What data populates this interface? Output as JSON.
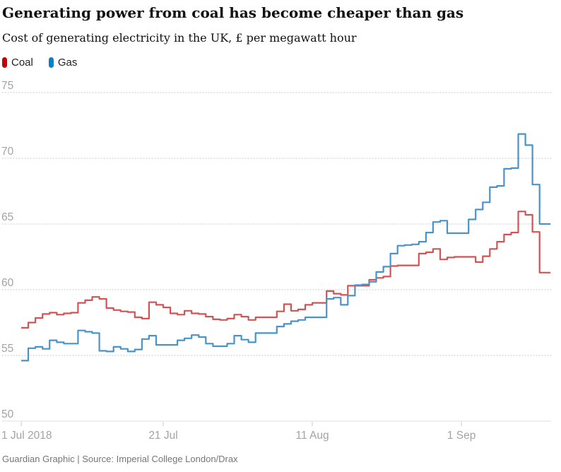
{
  "header": {
    "title": "Generating power from coal has become cheaper than gas",
    "subtitle": "Cost of generating electricity in the UK, £ per megawatt hour"
  },
  "legend": {
    "items": [
      {
        "id": "coal",
        "label": "Coal",
        "color": "#c70000",
        "line_color": "#d15454"
      },
      {
        "id": "gas",
        "label": "Gas",
        "color": "#0084c6",
        "line_color": "#4a93c6"
      }
    ]
  },
  "footer": {
    "credit": "Guardian Graphic | Source: Imperial College London/Drax"
  },
  "chart_data": {
    "type": "line",
    "step": true,
    "title": "Generating power from coal has become cheaper than gas",
    "subtitle": "Cost of generating electricity in the UK, £ per megawatt hour",
    "xlabel": "",
    "ylabel": "£ per megawatt hour",
    "x_start_date": "2018-07-01",
    "x_interval": "daily",
    "x_tick_labels": [
      "1 Jul 2018",
      "21 Jul",
      "11 Aug",
      "1 Sep"
    ],
    "x_tick_day_index": [
      0,
      20,
      41,
      62
    ],
    "y_ticks": [
      50,
      55,
      60,
      65,
      70,
      75
    ],
    "ylim": [
      50,
      77.5
    ],
    "grid": "horizontal-dotted",
    "legend_position": "top-left",
    "series": [
      {
        "name": "Coal",
        "color": "#d15454",
        "values": [
          57.1,
          57.5,
          57.85,
          58.15,
          58.25,
          58.1,
          58.2,
          58.25,
          59.0,
          59.2,
          59.45,
          59.3,
          58.6,
          58.45,
          58.35,
          58.3,
          57.9,
          57.8,
          59.05,
          58.85,
          58.65,
          58.2,
          58.1,
          58.4,
          58.2,
          58.15,
          57.95,
          57.75,
          57.7,
          57.8,
          58.1,
          57.95,
          57.7,
          57.9,
          57.9,
          57.9,
          58.35,
          58.9,
          58.4,
          58.5,
          58.85,
          59.0,
          59.0,
          59.9,
          59.7,
          59.6,
          60.3,
          60.3,
          60.3,
          60.75,
          60.9,
          61.0,
          61.8,
          61.85,
          61.85,
          61.85,
          62.75,
          62.85,
          63.1,
          62.3,
          62.45,
          62.5,
          62.5,
          62.5,
          62.1,
          62.55,
          63.1,
          63.65,
          64.2,
          64.35,
          65.95,
          65.7,
          64.4,
          61.3,
          61.3
        ]
      },
      {
        "name": "Gas",
        "color": "#4a93c6",
        "values": [
          54.6,
          55.55,
          55.65,
          55.5,
          56.15,
          56.0,
          55.9,
          55.9,
          56.9,
          56.8,
          56.7,
          55.35,
          55.3,
          55.65,
          55.5,
          55.3,
          55.45,
          56.25,
          56.5,
          55.8,
          55.8,
          55.8,
          56.15,
          56.3,
          56.55,
          56.4,
          55.9,
          55.7,
          55.7,
          55.9,
          56.5,
          56.2,
          56.0,
          56.7,
          56.7,
          56.7,
          57.2,
          57.4,
          57.6,
          57.7,
          57.9,
          57.9,
          57.9,
          59.3,
          59.4,
          58.85,
          59.55,
          60.35,
          60.4,
          60.6,
          61.35,
          61.75,
          62.75,
          63.35,
          63.4,
          63.45,
          63.65,
          64.35,
          65.15,
          65.25,
          64.3,
          64.3,
          64.3,
          65.35,
          66.1,
          66.65,
          67.8,
          67.9,
          69.2,
          69.25,
          71.85,
          71.0,
          68.0,
          65.0,
          65.0
        ]
      }
    ]
  }
}
